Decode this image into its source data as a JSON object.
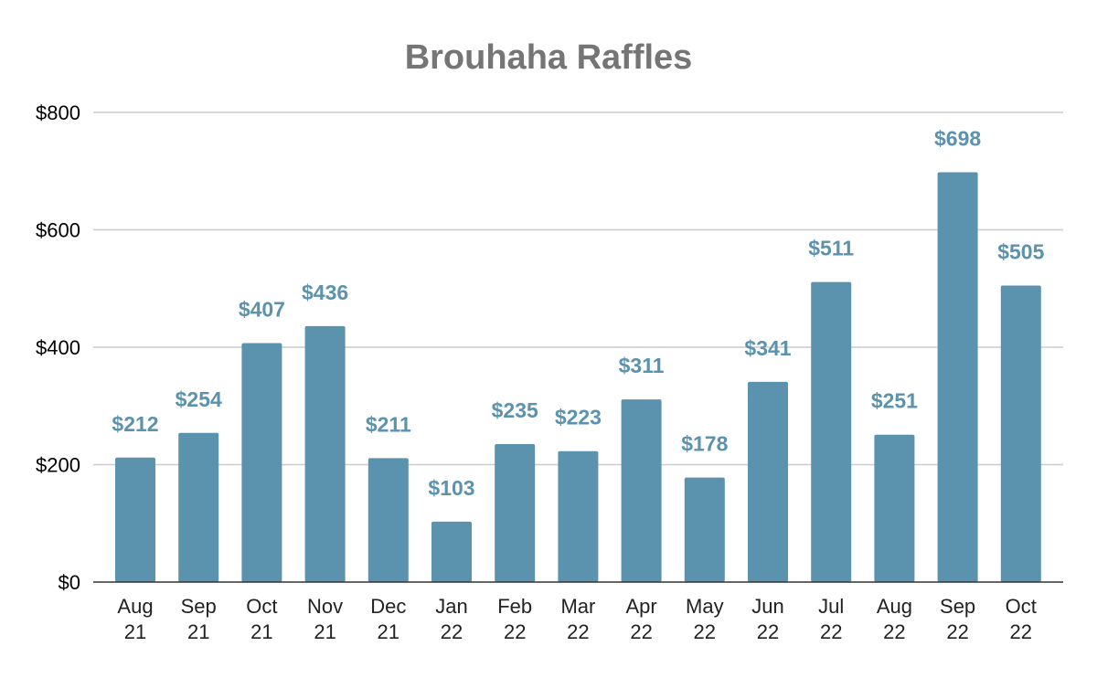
{
  "chart_data": {
    "type": "bar",
    "title": "Brouhaha Raffles",
    "xlabel": "",
    "ylabel": "",
    "ylim": [
      0,
      800
    ],
    "yticks": [
      0,
      200,
      400,
      600,
      800
    ],
    "ytick_labels": [
      "$0",
      "$200",
      "$400",
      "$600",
      "$800"
    ],
    "grid": true,
    "legend": "none",
    "categories": [
      [
        "Aug",
        "21"
      ],
      [
        "Sep",
        "21"
      ],
      [
        "Oct",
        "21"
      ],
      [
        "Nov",
        "21"
      ],
      [
        "Dec",
        "21"
      ],
      [
        "Jan",
        "22"
      ],
      [
        "Feb",
        "22"
      ],
      [
        "Mar",
        "22"
      ],
      [
        "Apr",
        "22"
      ],
      [
        "May",
        "22"
      ],
      [
        "Jun",
        "22"
      ],
      [
        "Jul",
        "22"
      ],
      [
        "Aug",
        "22"
      ],
      [
        "Sep",
        "22"
      ],
      [
        "Oct",
        "22"
      ]
    ],
    "values": [
      212,
      254,
      407,
      436,
      211,
      103,
      235,
      223,
      311,
      178,
      341,
      511,
      251,
      698,
      505
    ],
    "data_labels": [
      "$212",
      "$254",
      "$407",
      "$436",
      "$211",
      "$103",
      "$235",
      "$223",
      "$311",
      "$178",
      "$341",
      "$511",
      "$251",
      "$698",
      "$505"
    ],
    "bar_color": "#5b92ae",
    "label_color": "#5b92ae"
  }
}
